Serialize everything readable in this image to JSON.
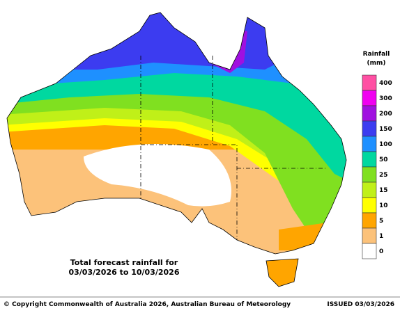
{
  "map": {
    "caption_line1": "Total forecast rainfall for",
    "caption_line2": "03/03/2026 to 10/03/2026"
  },
  "legend": {
    "title_line1": "Rainfall",
    "title_line2": "(mm)",
    "items": [
      {
        "label": "400",
        "color": "#ff4fa3"
      },
      {
        "label": "300",
        "color": "#f000f0"
      },
      {
        "label": "200",
        "color": "#a010e0"
      },
      {
        "label": "150",
        "color": "#3c3cf0"
      },
      {
        "label": "100",
        "color": "#1e90ff"
      },
      {
        "label": "50",
        "color": "#00d8a0"
      },
      {
        "label": "25",
        "color": "#80e020"
      },
      {
        "label": "15",
        "color": "#c0f018"
      },
      {
        "label": "10",
        "color": "#ffff00"
      },
      {
        "label": "5",
        "color": "#ffa500"
      },
      {
        "label": "1",
        "color": "#fcc27a"
      },
      {
        "label": "0",
        "color": "#ffffff"
      }
    ]
  },
  "footer": {
    "copyright": "© Copyright Commonwealth of Australia 2026, Australian Bureau of Meteorology",
    "issued": "ISSUED 03/03/2026"
  }
}
